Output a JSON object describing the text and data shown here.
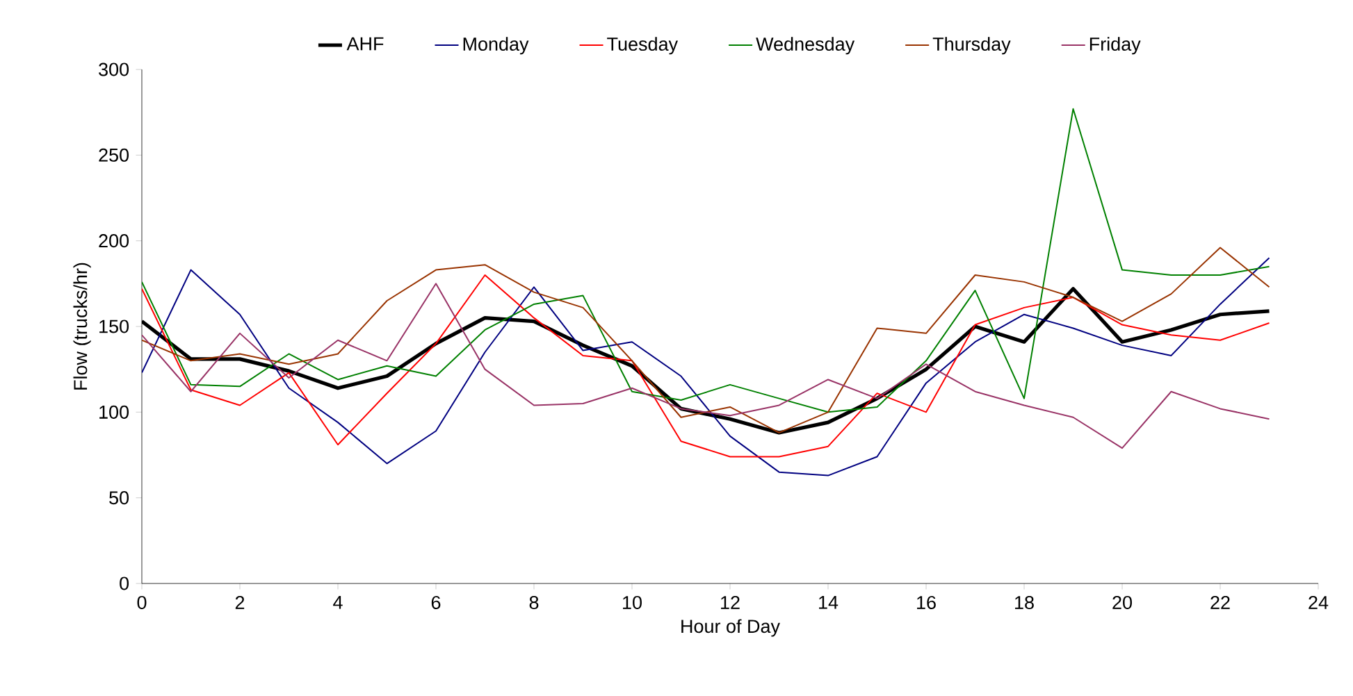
{
  "chart_data": {
    "type": "line",
    "xlabel": "Hour of Day",
    "ylabel": "Flow (trucks/hr)",
    "x": [
      0,
      1,
      2,
      3,
      4,
      5,
      6,
      7,
      8,
      9,
      10,
      11,
      12,
      13,
      14,
      15,
      16,
      17,
      18,
      19,
      20,
      21,
      22,
      23
    ],
    "xlim": [
      0,
      24
    ],
    "xticks": [
      0,
      2,
      4,
      6,
      8,
      10,
      12,
      14,
      16,
      18,
      20,
      22,
      24
    ],
    "ylim": [
      0,
      300
    ],
    "yticks": [
      0,
      50,
      100,
      150,
      200,
      250,
      300
    ],
    "grid": false,
    "legend": "top",
    "marker": "none",
    "line_style": "solid",
    "series": [
      {
        "name": "AHF",
        "color": "#000000",
        "values": [
          153,
          131,
          131,
          124,
          114,
          121,
          140,
          155,
          153,
          139,
          127,
          102,
          96,
          88,
          94,
          108,
          125,
          150,
          141,
          172,
          141,
          148,
          157,
          159
        ]
      },
      {
        "name": "Monday",
        "color": "#000080",
        "values": [
          123,
          183,
          157,
          114,
          94,
          70,
          89,
          135,
          173,
          136,
          141,
          121,
          86,
          65,
          63,
          74,
          117,
          141,
          157,
          149,
          139,
          133,
          163,
          190
        ]
      },
      {
        "name": "Tuesday",
        "color": "#ff0000",
        "values": [
          172,
          113,
          104,
          123,
          81,
          111,
          140,
          180,
          155,
          133,
          130,
          83,
          74,
          74,
          80,
          111,
          100,
          151,
          161,
          167,
          151,
          145,
          142,
          152
        ]
      },
      {
        "name": "Wednesday",
        "color": "#008000",
        "values": [
          176,
          116,
          115,
          134,
          119,
          127,
          121,
          148,
          163,
          168,
          112,
          107,
          116,
          108,
          100,
          103,
          130,
          171,
          108,
          277,
          183,
          180,
          180,
          185
        ]
      },
      {
        "name": "Thursday",
        "color": "#993300",
        "values": [
          142,
          130,
          134,
          128,
          134,
          165,
          183,
          186,
          170,
          161,
          130,
          97,
          103,
          88,
          100,
          149,
          146,
          180,
          176,
          167,
          153,
          169,
          196,
          173
        ]
      },
      {
        "name": "Friday",
        "color": "#993366",
        "values": [
          145,
          112,
          146,
          120,
          142,
          130,
          175,
          125,
          104,
          105,
          114,
          102,
          98,
          104,
          119,
          108,
          128,
          112,
          104,
          97,
          79,
          112,
          102,
          96
        ]
      }
    ]
  }
}
